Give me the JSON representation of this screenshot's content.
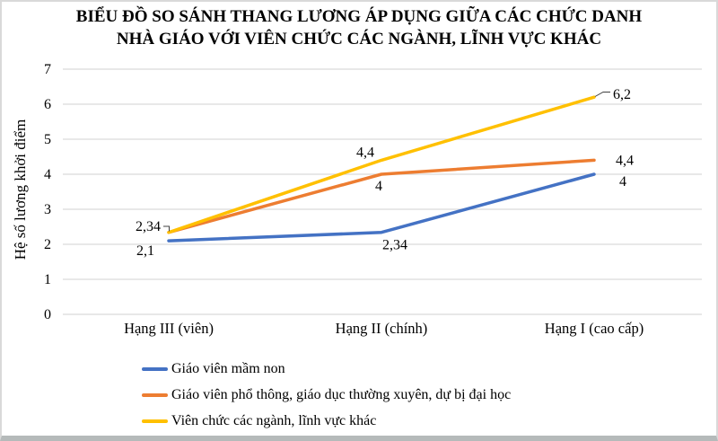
{
  "title": {
    "line1": "BIỂU ĐỒ SO SÁNH THANG LƯƠNG ÁP DỤNG GIỮA CÁC CHỨC DANH",
    "line2": "NHÀ GIÁO VỚI VIÊN CHỨC CÁC NGÀNH, LĨNH VỰC KHÁC"
  },
  "y_axis": {
    "label": "Hệ số lương khởi điểm",
    "ticks": [
      "0",
      "1",
      "2",
      "3",
      "4",
      "5",
      "6",
      "7"
    ]
  },
  "x_axis": {
    "categories": [
      "Hạng III (viên)",
      "Hạng II (chính)",
      "Hạng I (cao cấp)"
    ]
  },
  "colors": {
    "grid": "#d9d9d9",
    "text": "#000000",
    "callout": "#404040"
  },
  "chart_data": {
    "type": "line",
    "title": "BIỂU ĐỒ SO SÁNH THANG LƯƠNG ÁP DỤNG GIỮA CÁC CHỨC DANH NHÀ GIÁO VỚI VIÊN CHỨC CÁC NGÀNH, LĨNH VỰC KHÁC",
    "xlabel": "",
    "ylabel": "Hệ số lương khởi điểm",
    "ylim": [
      0,
      7
    ],
    "grid": true,
    "legend_position": "bottom-left",
    "categories": [
      "Hạng III (viên)",
      "Hạng II (chính)",
      "Hạng I (cao cấp)"
    ],
    "series": [
      {
        "name": "Giáo viên mầm non",
        "color": "#4472C4",
        "values": [
          2.1,
          2.34,
          4
        ],
        "labels": [
          "2,1",
          "2,34",
          "4"
        ]
      },
      {
        "name": "Giáo viên phổ thông, giáo dục thường xuyên, dự bị đại học",
        "color": "#ED7D31",
        "values": [
          2.34,
          4,
          4.4
        ],
        "labels": [
          null,
          "4",
          "4,4"
        ]
      },
      {
        "name": "Viên chức các ngành, lĩnh vực khác",
        "color": "#FFC000",
        "values": [
          2.34,
          4.4,
          6.2
        ],
        "labels": [
          "2,34",
          "4,4",
          "6,2"
        ]
      }
    ]
  }
}
